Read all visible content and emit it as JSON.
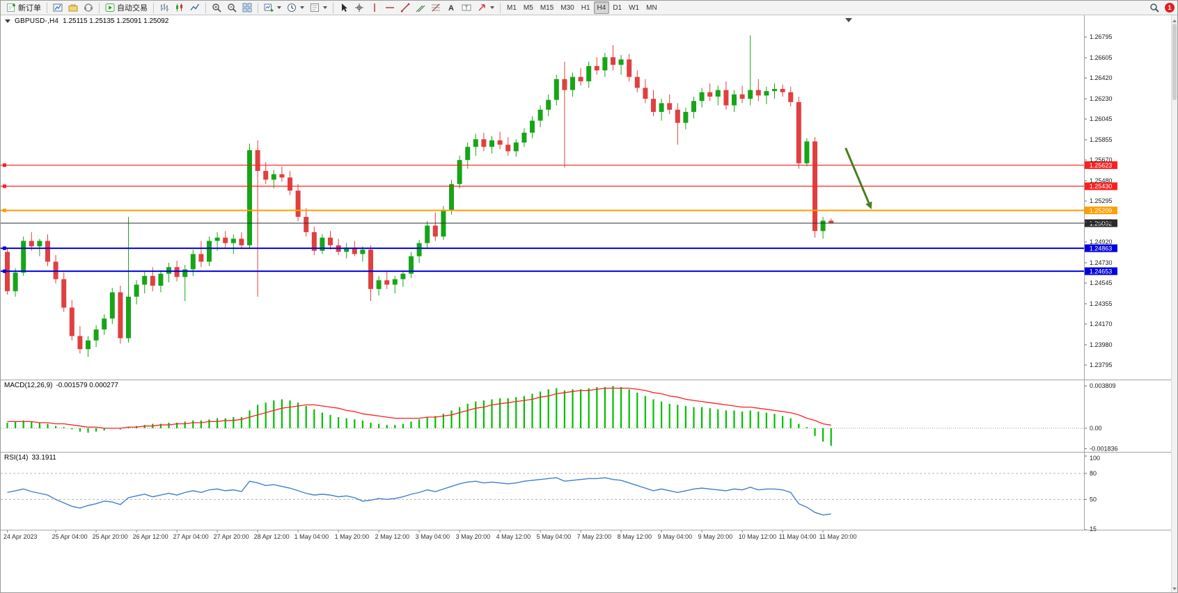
{
  "toolbar": {
    "groups": [
      {
        "items": [
          {
            "name": "new-order",
            "icon": "new-order",
            "label": "新订单"
          }
        ]
      },
      {
        "items": [
          {
            "name": "charts",
            "icon": "charts"
          },
          {
            "name": "profiles",
            "icon": "profiles"
          },
          {
            "name": "market-watch",
            "icon": "sound"
          }
        ]
      },
      {
        "items": [
          {
            "name": "autotrading",
            "icon": "autotrading",
            "label": "自动交易"
          }
        ]
      },
      {
        "items": [
          {
            "name": "bar-chart-mode",
            "icon": "bars"
          },
          {
            "name": "candlestick-mode",
            "icon": "candles"
          },
          {
            "name": "line-chart-mode",
            "icon": "line"
          }
        ]
      },
      {
        "items": [
          {
            "name": "zoom-in",
            "icon": "zoom-in"
          },
          {
            "name": "zoom-out",
            "icon": "zoom-out"
          },
          {
            "name": "tile-windows",
            "icon": "tile"
          }
        ]
      },
      {
        "items": [
          {
            "name": "new-chart",
            "icon": "new-chart",
            "dropdown": true
          },
          {
            "name": "periods",
            "icon": "clock",
            "dropdown": true
          },
          {
            "name": "templates",
            "icon": "template",
            "dropdown": true
          }
        ]
      },
      {
        "items": [
          {
            "name": "cursor",
            "icon": "cursor"
          },
          {
            "name": "crosshair",
            "icon": "crosshair"
          },
          {
            "name": "vertical-line",
            "icon": "vline"
          },
          {
            "name": "horizontal-line",
            "icon": "hline"
          },
          {
            "name": "trendline",
            "icon": "trend"
          },
          {
            "name": "equidistant-channel",
            "icon": "channel"
          },
          {
            "name": "fibonacci",
            "icon": "fibo"
          },
          {
            "name": "text",
            "icon": "textA"
          },
          {
            "name": "text-label",
            "icon": "label"
          },
          {
            "name": "arrows",
            "icon": "arrows",
            "dropdown": true
          }
        ]
      }
    ],
    "timeframes": [
      "M1",
      "M5",
      "M15",
      "M30",
      "H1",
      "H4",
      "D1",
      "W1",
      "MN"
    ],
    "active_timeframe": "H4",
    "right": [
      {
        "name": "search",
        "icon": "search"
      },
      {
        "name": "notifications",
        "badge": "1"
      }
    ]
  },
  "chart": {
    "symbol_period": "GBPUSD-,H4",
    "ohlc_text": "1.25115 1.25135 1.25091 1.25092"
  },
  "chart_data": {
    "type": "candlestick",
    "symbol": "GBPUSD-",
    "timeframe": "H4",
    "up_color": "#17a517",
    "down_color": "#e04040",
    "price_axis_ticks": [
      "1.26795",
      "1.26605",
      "1.26420",
      "1.26230",
      "1.26045",
      "1.25855",
      "1.25670",
      "1.25480",
      "1.25295",
      "1.25105",
      "1.24920",
      "1.24730",
      "1.24545",
      "1.24355",
      "1.24170",
      "1.23980",
      "1.23795"
    ],
    "time_labels": [
      {
        "index": 0,
        "label": "24 Apr 2023"
      },
      {
        "index": 6,
        "label": "25 Apr 04:00"
      },
      {
        "index": 11,
        "label": "25 Apr 20:00"
      },
      {
        "index": 16,
        "label": "26 Apr 12:00"
      },
      {
        "index": 21,
        "label": "27 Apr 04:00"
      },
      {
        "index": 26,
        "label": "27 Apr 20:00"
      },
      {
        "index": 31,
        "label": "28 Apr 12:00"
      },
      {
        "index": 36,
        "label": "1 May 04:00"
      },
      {
        "index": 41,
        "label": "1 May 20:00"
      },
      {
        "index": 46,
        "label": "2 May 12:00"
      },
      {
        "index": 51,
        "label": "3 May 04:00"
      },
      {
        "index": 56,
        "label": "3 May 20:00"
      },
      {
        "index": 61,
        "label": "4 May 12:00"
      },
      {
        "index": 66,
        "label": "5 May 04:00"
      },
      {
        "index": 71,
        "label": "7 May 23:00"
      },
      {
        "index": 76,
        "label": "8 May 12:00"
      },
      {
        "index": 81,
        "label": "9 May 04:00"
      },
      {
        "index": 86,
        "label": "9 May 20:00"
      },
      {
        "index": 91,
        "label": "10 May 12:00"
      },
      {
        "index": 96,
        "label": "11 May 04:00"
      },
      {
        "index": 101,
        "label": "11 May 20:00"
      }
    ],
    "candles": [
      [
        1.2483,
        1.2487,
        1.2444,
        1.2447
      ],
      [
        1.2447,
        1.2468,
        1.2442,
        1.2464
      ],
      [
        1.2464,
        1.2497,
        1.2461,
        1.2493
      ],
      [
        1.2493,
        1.2501,
        1.2484,
        1.2488
      ],
      [
        1.2488,
        1.2495,
        1.2479,
        1.2493
      ],
      [
        1.2493,
        1.2499,
        1.247,
        1.2474
      ],
      [
        1.2474,
        1.248,
        1.2454,
        1.2458
      ],
      [
        1.2458,
        1.2464,
        1.2428,
        1.2432
      ],
      [
        1.2432,
        1.2439,
        1.2402,
        1.2406
      ],
      [
        1.2406,
        1.2415,
        1.239,
        1.2394
      ],
      [
        1.2394,
        1.2406,
        1.2387,
        1.2402
      ],
      [
        1.2402,
        1.2416,
        1.2396,
        1.2412
      ],
      [
        1.2412,
        1.2426,
        1.2407,
        1.2422
      ],
      [
        1.2422,
        1.245,
        1.2417,
        1.2446
      ],
      [
        1.2446,
        1.2452,
        1.2399,
        1.2404
      ],
      [
        1.2404,
        1.2515,
        1.24,
        1.2442
      ],
      [
        1.2442,
        1.2457,
        1.2435,
        1.2453
      ],
      [
        1.2453,
        1.2465,
        1.2445,
        1.2461
      ],
      [
        1.2461,
        1.2469,
        1.2447,
        1.2452
      ],
      [
        1.2452,
        1.2466,
        1.2446,
        1.2463
      ],
      [
        1.2463,
        1.2473,
        1.2455,
        1.2469
      ],
      [
        1.2469,
        1.2475,
        1.2456,
        1.246
      ],
      [
        1.246,
        1.2471,
        1.2438,
        1.2467
      ],
      [
        1.2467,
        1.2485,
        1.2461,
        1.2481
      ],
      [
        1.2481,
        1.2493,
        1.2469,
        1.2474
      ],
      [
        1.2474,
        1.2497,
        1.247,
        1.2493
      ],
      [
        1.2493,
        1.2501,
        1.2484,
        1.2496
      ],
      [
        1.2496,
        1.2502,
        1.2487,
        1.2491
      ],
      [
        1.2491,
        1.2499,
        1.2481,
        1.2495
      ],
      [
        1.2495,
        1.2501,
        1.2486,
        1.2489
      ],
      [
        1.2489,
        1.2582,
        1.2486,
        1.2576
      ],
      [
        1.2576,
        1.2585,
        1.2442,
        1.2557
      ],
      [
        1.2557,
        1.2565,
        1.2545,
        1.2549
      ],
      [
        1.2549,
        1.2558,
        1.2541,
        1.2554
      ],
      [
        1.2554,
        1.2561,
        1.2547,
        1.2551
      ],
      [
        1.2551,
        1.2557,
        1.2535,
        1.2539
      ],
      [
        1.2539,
        1.2545,
        1.2511,
        1.2515
      ],
      [
        1.2515,
        1.2523,
        1.2497,
        1.2501
      ],
      [
        1.2501,
        1.2506,
        1.248,
        1.2484
      ],
      [
        1.2484,
        1.2499,
        1.2481,
        1.2496
      ],
      [
        1.2496,
        1.2502,
        1.2485,
        1.2489
      ],
      [
        1.2489,
        1.2495,
        1.248,
        1.2483
      ],
      [
        1.2483,
        1.2491,
        1.2477,
        1.2487
      ],
      [
        1.2487,
        1.2493,
        1.2479,
        1.2481
      ],
      [
        1.2481,
        1.2488,
        1.2474,
        1.2485
      ],
      [
        1.2485,
        1.2489,
        1.2438,
        1.2449
      ],
      [
        1.2449,
        1.2461,
        1.2443,
        1.2457
      ],
      [
        1.2457,
        1.2465,
        1.2449,
        1.2453
      ],
      [
        1.2453,
        1.2461,
        1.2445,
        1.2458
      ],
      [
        1.2458,
        1.2466,
        1.2451,
        1.2463
      ],
      [
        1.2463,
        1.2483,
        1.2459,
        1.2479
      ],
      [
        1.2479,
        1.2494,
        1.2473,
        1.2491
      ],
      [
        1.2491,
        1.2511,
        1.2486,
        1.2507
      ],
      [
        1.2507,
        1.2519,
        1.2493,
        1.2497
      ],
      [
        1.2497,
        1.2525,
        1.2494,
        1.2521
      ],
      [
        1.2521,
        1.2549,
        1.2517,
        1.2545
      ],
      [
        1.2545,
        1.2571,
        1.2541,
        1.2567
      ],
      [
        1.2567,
        1.2583,
        1.2559,
        1.2579
      ],
      [
        1.2579,
        1.2591,
        1.2571,
        1.2586
      ],
      [
        1.2586,
        1.2592,
        1.2575,
        1.2579
      ],
      [
        1.2579,
        1.2589,
        1.2573,
        1.2585
      ],
      [
        1.2585,
        1.2593,
        1.2577,
        1.2581
      ],
      [
        1.2581,
        1.2588,
        1.2571,
        1.2575
      ],
      [
        1.2575,
        1.2586,
        1.257,
        1.2583
      ],
      [
        1.2583,
        1.2596,
        1.2579,
        1.2592
      ],
      [
        1.2592,
        1.2607,
        1.2587,
        1.2603
      ],
      [
        1.2603,
        1.2617,
        1.2597,
        1.2613
      ],
      [
        1.2613,
        1.2627,
        1.2607,
        1.2622
      ],
      [
        1.2622,
        1.2645,
        1.2617,
        1.2641
      ],
      [
        1.2641,
        1.2657,
        1.256,
        1.2631
      ],
      [
        1.2631,
        1.2647,
        1.2625,
        1.2643
      ],
      [
        1.2643,
        1.2651,
        1.2635,
        1.2639
      ],
      [
        1.2639,
        1.2657,
        1.2633,
        1.2653
      ],
      [
        1.2653,
        1.2661,
        1.2645,
        1.2649
      ],
      [
        1.2649,
        1.2665,
        1.2643,
        1.2661
      ],
      [
        1.2661,
        1.2672,
        1.2649,
        1.2654
      ],
      [
        1.2654,
        1.2663,
        1.2645,
        1.2659
      ],
      [
        1.2659,
        1.2664,
        1.2639,
        1.2643
      ],
      [
        1.2643,
        1.2649,
        1.2629,
        1.2633
      ],
      [
        1.2633,
        1.2641,
        1.2619,
        1.2623
      ],
      [
        1.2623,
        1.2631,
        1.2607,
        1.2611
      ],
      [
        1.2611,
        1.2623,
        1.2603,
        1.2619
      ],
      [
        1.2619,
        1.2627,
        1.2609,
        1.2613
      ],
      [
        1.2613,
        1.2619,
        1.2581,
        1.2601
      ],
      [
        1.2601,
        1.2615,
        1.2595,
        1.2611
      ],
      [
        1.2611,
        1.2625,
        1.2605,
        1.2621
      ],
      [
        1.2621,
        1.2633,
        1.2615,
        1.2629
      ],
      [
        1.2629,
        1.2637,
        1.2621,
        1.2625
      ],
      [
        1.2625,
        1.2635,
        1.2617,
        1.2631
      ],
      [
        1.2631,
        1.2639,
        1.2613,
        1.2617
      ],
      [
        1.2617,
        1.2631,
        1.2611,
        1.2627
      ],
      [
        1.2627,
        1.2635,
        1.2619,
        1.2623
      ],
      [
        1.2623,
        1.2681,
        1.2617,
        1.2631
      ],
      [
        1.2631,
        1.2641,
        1.2621,
        1.2626
      ],
      [
        1.2626,
        1.2634,
        1.2618,
        1.263
      ],
      [
        1.263,
        1.2637,
        1.2623,
        1.2632
      ],
      [
        1.2632,
        1.2636,
        1.2625,
        1.2629
      ],
      [
        1.2629,
        1.2634,
        1.2616,
        1.262
      ],
      [
        1.262,
        1.2625,
        1.2559,
        1.2564
      ],
      [
        1.2564,
        1.2587,
        1.2561,
        1.2584
      ],
      [
        1.2584,
        1.2588,
        1.2496,
        1.2502
      ],
      [
        1.2502,
        1.2515,
        1.2495,
        1.25115
      ],
      [
        1.25115,
        1.25135,
        1.25091,
        1.25092
      ]
    ],
    "hlines": [
      {
        "price": 1.25623,
        "color": "#ff1e1e",
        "width": 1.2,
        "label": "1.25623",
        "name": "resistance-line-1"
      },
      {
        "price": 1.2543,
        "color": "#ff1e1e",
        "width": 1.2,
        "label": "1.25430",
        "name": "resistance-line-2"
      },
      {
        "price": 1.25209,
        "color": "#ff9e00",
        "width": 2,
        "label": "1.25209",
        "name": "pivot-line"
      },
      {
        "price": 1.25092,
        "color": "#2b2b2b",
        "width": 1,
        "label": "1.25092",
        "name": "current-price-line",
        "handle": false
      },
      {
        "price": 1.24863,
        "color": "#0000e0",
        "width": 2,
        "label": "1.24863",
        "name": "support-line-1"
      },
      {
        "price": 1.24653,
        "color": "#0000e0",
        "width": 2,
        "label": "1.24653",
        "name": "support-line-2"
      }
    ],
    "arrow": {
      "i1": 103.8,
      "p1": 1.2578,
      "i2": 107.0,
      "p2": 1.2522,
      "color": "#4a7d1f",
      "width": 3
    },
    "macd": {
      "label": "MACD(12,26,9)",
      "values_text": "-0.001579 0.000277",
      "axis": [
        {
          "text": "0.003809",
          "value": 0.003809
        },
        {
          "text": "0.00",
          "value": 0
        },
        {
          "text": "-0.001836",
          "value": -0.001836
        }
      ],
      "hist_color": "#00be00",
      "signal_color": "#ff1e1e",
      "histogram": [
        0.0005,
        0.0006,
        0.0007,
        0.0006,
        0.0005,
        0.0004,
        0.0002,
        0.0001,
        -0.0001,
        -0.0003,
        -0.0004,
        -0.0003,
        -0.0002,
        0.0,
        -0.0001,
        0.0001,
        0.0002,
        0.0003,
        0.0004,
        0.0004,
        0.0005,
        0.0005,
        0.0006,
        0.0007,
        0.0007,
        0.0008,
        0.0009,
        0.0009,
        0.001,
        0.001,
        0.0016,
        0.0021,
        0.0023,
        0.0025,
        0.0026,
        0.0025,
        0.0023,
        0.002,
        0.0017,
        0.0014,
        0.0012,
        0.001,
        0.0009,
        0.0008,
        0.0007,
        0.0005,
        0.0004,
        0.0003,
        0.0003,
        0.0004,
        0.0006,
        0.0008,
        0.001,
        0.0011,
        0.0013,
        0.0016,
        0.0019,
        0.0022,
        0.0024,
        0.0025,
        0.0026,
        0.0027,
        0.0027,
        0.0028,
        0.0029,
        0.0031,
        0.0033,
        0.0035,
        0.0036,
        0.0034,
        0.0035,
        0.0035,
        0.0036,
        0.0037,
        0.0037,
        0.0038,
        0.0037,
        0.0035,
        0.0032,
        0.0029,
        0.0026,
        0.0024,
        0.0022,
        0.0021,
        0.002,
        0.0019,
        0.0019,
        0.0018,
        0.0017,
        0.0016,
        0.0016,
        0.0015,
        0.0016,
        0.0015,
        0.0014,
        0.0013,
        0.0011,
        0.0009,
        0.0004,
        0.0001,
        -0.0007,
        -0.0012,
        -0.001579
      ],
      "signal": [
        0.0006,
        0.0006,
        0.0006,
        0.0006,
        0.0005,
        0.0005,
        0.0004,
        0.0004,
        0.0003,
        0.0002,
        0.0001,
        0.0001,
        0.0,
        0.0,
        0.0,
        0.0001,
        0.0001,
        0.0002,
        0.0002,
        0.0003,
        0.0003,
        0.0004,
        0.0004,
        0.0005,
        0.0005,
        0.0006,
        0.0006,
        0.0007,
        0.0007,
        0.0008,
        0.001,
        0.0012,
        0.0014,
        0.0016,
        0.0018,
        0.0019,
        0.002,
        0.0021,
        0.0021,
        0.002,
        0.0019,
        0.0018,
        0.0016,
        0.0015,
        0.0013,
        0.0012,
        0.0011,
        0.001,
        0.0009,
        0.0009,
        0.0009,
        0.0009,
        0.001,
        0.001,
        0.0011,
        0.0012,
        0.0014,
        0.0016,
        0.0018,
        0.0019,
        0.0021,
        0.0022,
        0.0023,
        0.0024,
        0.0025,
        0.0026,
        0.0028,
        0.0029,
        0.0031,
        0.0032,
        0.0033,
        0.0034,
        0.0034,
        0.0035,
        0.0036,
        0.0036,
        0.0036,
        0.0036,
        0.0035,
        0.0034,
        0.0032,
        0.0031,
        0.0029,
        0.0028,
        0.0026,
        0.0025,
        0.0024,
        0.0023,
        0.0022,
        0.0021,
        0.002,
        0.0019,
        0.0019,
        0.0018,
        0.0017,
        0.0016,
        0.0015,
        0.0014,
        0.0012,
        0.0009,
        0.0007,
        0.0004,
        0.000277
      ]
    },
    "rsi": {
      "label": "RSI(14)",
      "value_text": "33.1911",
      "color": "#3f7fca",
      "levels": [
        80,
        50
      ],
      "axis": [
        {
          "text": "100",
          "value": 100
        },
        {
          "text": "80",
          "value": 80
        },
        {
          "text": "50",
          "value": 50
        },
        {
          "text": "15",
          "value": 15
        }
      ],
      "values": [
        58,
        60,
        62,
        59,
        57,
        55,
        50,
        46,
        42,
        40,
        43,
        45,
        48,
        47,
        44,
        52,
        54,
        56,
        53,
        55,
        57,
        55,
        58,
        60,
        58,
        61,
        62,
        60,
        61,
        59,
        71,
        69,
        66,
        67,
        65,
        63,
        60,
        57,
        55,
        56,
        55,
        53,
        54,
        52,
        48,
        49,
        51,
        50,
        51,
        53,
        56,
        58,
        61,
        59,
        62,
        65,
        68,
        70,
        71,
        69,
        70,
        69,
        68,
        69,
        71,
        72,
        73,
        74,
        75,
        71,
        72,
        73,
        74,
        74,
        75,
        73,
        72,
        69,
        66,
        63,
        60,
        62,
        60,
        58,
        60,
        62,
        63,
        62,
        61,
        60,
        62,
        61,
        64,
        61,
        62,
        62,
        61,
        58,
        45,
        41,
        35,
        32,
        33.19
      ]
    }
  }
}
